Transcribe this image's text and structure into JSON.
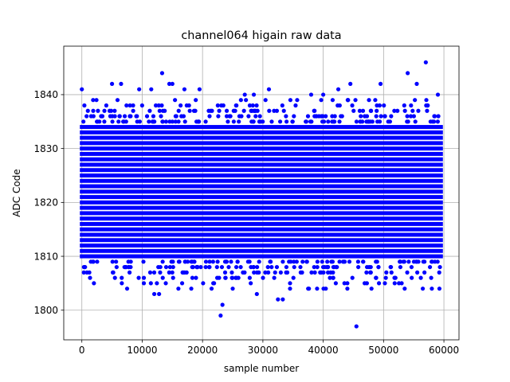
{
  "chart_data": {
    "type": "scatter",
    "title": "channel064 higain raw data",
    "xlabel": "sample number",
    "ylabel": "ADC Code",
    "xlim": [
      -3000,
      62500
    ],
    "ylim": [
      1794.5,
      1849
    ],
    "xticks": [
      0,
      10000,
      20000,
      30000,
      40000,
      50000,
      60000
    ],
    "xtick_labels": [
      "0",
      "10000",
      "20000",
      "30000",
      "40000",
      "50000",
      "60000"
    ],
    "yticks": [
      1800,
      1810,
      1820,
      1830,
      1840
    ],
    "ytick_labels": [
      "1800",
      "1810",
      "1820",
      "1830",
      "1840"
    ],
    "grid": true,
    "marker_color": "#0000ff",
    "x_range": [
      0,
      59500
    ],
    "dense_band": [
      1810,
      1834
    ],
    "series": [
      {
        "x": [
          0,
          5000,
          6500,
          9500,
          11500,
          13300,
          14500,
          15000,
          17000,
          19500,
          23000,
          23300,
          27000,
          28500,
          31000,
          32500,
          33300,
          38000,
          40000,
          42500,
          44500,
          45500,
          49500,
          53500,
          54000,
          55500,
          57000,
          59000,
          2000,
          7500,
          12000,
          12800,
          16000,
          21500,
          25000,
          29000,
          34500,
          37500,
          44000,
          48000,
          53000,
          56500,
          58000
        ],
        "y": [
          1841,
          1842,
          1842,
          1841,
          1841,
          1844,
          1842,
          1842,
          1841,
          1841,
          1799,
          1801,
          1840,
          1840,
          1841,
          1802,
          1802,
          1840,
          1840,
          1841,
          1842,
          1797,
          1842,
          1804,
          1844,
          1842,
          1846,
          1840,
          1805,
          1804,
          1803,
          1803,
          1804,
          1804,
          1804,
          1803,
          1804,
          1804,
          1804,
          1804,
          1805,
          1804,
          1804
        ]
      }
    ]
  }
}
